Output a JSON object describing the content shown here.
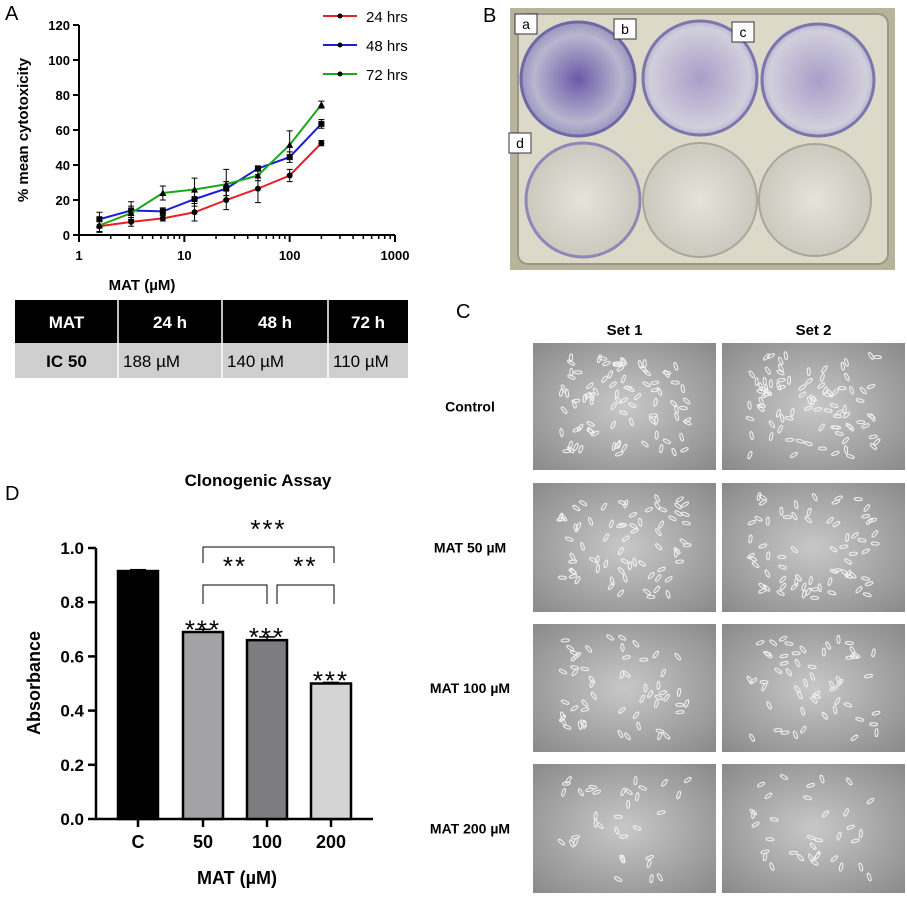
{
  "panel_labels": {
    "a": "A",
    "b": "B",
    "c": "C",
    "d": "D"
  },
  "chart_data": [
    {
      "type": "line",
      "xlabel": "MAT (µM)",
      "ylabel": "% mean cytotoxicity",
      "xscale": "log",
      "xlim": [
        1,
        1000
      ],
      "ylim": [
        0,
        120
      ],
      "xticks": [
        "1",
        "10",
        "100",
        "1000"
      ],
      "yticks": [
        "0",
        "20",
        "40",
        "60",
        "80",
        "100",
        "120"
      ],
      "legend_position": "top-right",
      "x": [
        1.5625,
        3.125,
        6.25,
        12.5,
        25,
        50,
        100,
        200
      ],
      "series": [
        {
          "name": "24 hrs",
          "color": "#e8202a",
          "marker": "circle",
          "values": [
            5,
            7.5,
            9.5,
            13,
            20,
            26.5,
            34,
            52.5
          ],
          "errors": [
            3,
            2.5,
            1.5,
            5,
            5.5,
            8,
            3.5,
            1.5
          ]
        },
        {
          "name": "48 hrs",
          "color": "#1a1fd6",
          "marker": "square",
          "values": [
            9,
            14,
            13.5,
            20.5,
            26.5,
            38,
            44.5,
            63.5
          ],
          "errors": [
            4,
            5,
            2,
            4,
            4,
            1.5,
            3,
            2.5
          ]
        },
        {
          "name": "72 hrs",
          "color": "#1aa81a",
          "marker": "triangle",
          "values": [
            5.5,
            12.5,
            24,
            26,
            29,
            34,
            51.5,
            74.5
          ],
          "errors": [
            4,
            4,
            4,
            6.5,
            8.5,
            3,
            8,
            2
          ]
        }
      ]
    },
    {
      "type": "bar",
      "title": "Clonogenic Assay",
      "xlabel": "MAT (µM)",
      "ylabel": "Absorbance",
      "ylim": [
        0,
        1.0
      ],
      "yticks": [
        "0.0",
        "0.2",
        "0.4",
        "0.6",
        "0.8",
        "1.0"
      ],
      "categories": [
        "C",
        "50",
        "100",
        "200"
      ],
      "values": [
        0.915,
        0.69,
        0.66,
        0.5
      ],
      "errors": [
        0.005,
        0.01,
        0.012,
        0.004
      ],
      "colors": [
        "#000000",
        "#a3a3a6",
        "#7d7d7f",
        "#d4d4d4"
      ],
      "bar_significance": [
        "",
        "***",
        "***",
        "***"
      ],
      "brackets": [
        {
          "from": "50",
          "to": "200",
          "label": "***"
        },
        {
          "from": "50",
          "to": "100",
          "label": "**"
        },
        {
          "from": "100",
          "to": "200",
          "label": "**"
        }
      ]
    }
  ],
  "ic50_table": {
    "headers": [
      "MAT",
      "24 h",
      "48 h",
      "72 h"
    ],
    "row_label": "IC 50",
    "values": [
      "188 µM",
      "140 µM",
      "110 µM"
    ]
  },
  "plate": {
    "well_labels": [
      "a",
      "b",
      "c",
      "d"
    ]
  },
  "micrographs": {
    "columns": [
      "Set 1",
      "Set 2"
    ],
    "rows": [
      "Control",
      "MAT 50 µM",
      "MAT 100 µM",
      "MAT 200 µM"
    ]
  }
}
